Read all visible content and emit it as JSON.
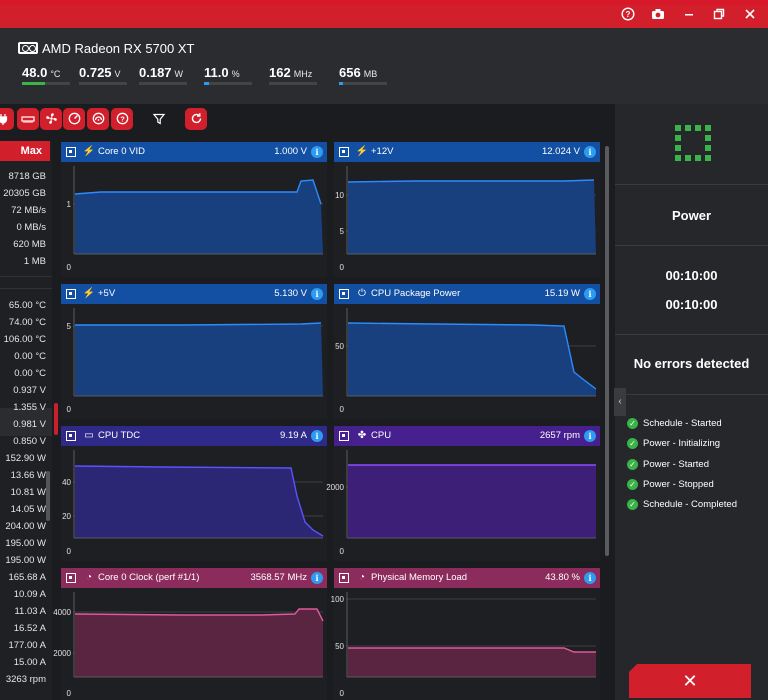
{
  "gpu": {
    "name": "AMD Radeon RX 5700 XT",
    "metrics": [
      {
        "value": "48.0",
        "unit": "°C",
        "level": 0.48,
        "color": "#3ab349"
      },
      {
        "value": "0.725",
        "unit": "V",
        "level": 0,
        "color": "#3ab349"
      },
      {
        "value": "0.187",
        "unit": "W",
        "level": 0,
        "color": "#3ab349"
      },
      {
        "value": "11.0",
        "unit": "%",
        "level": 0.11,
        "color": "#2d9bf0"
      },
      {
        "value": "162",
        "unit": "MHz",
        "level": 0,
        "color": "#2d9bf0"
      },
      {
        "value": "656",
        "unit": "MB",
        "level": 0.08,
        "color": "#2d9bf0"
      }
    ]
  },
  "toolbar": {
    "icons": [
      "plug-icon",
      "ram-icon",
      "fan-icon",
      "gauge-icon",
      "speedometer-icon",
      "help-icon",
      "filter-icon",
      "reset-icon"
    ]
  },
  "left_list": {
    "header": "Max",
    "rows": [
      "8718 GB",
      "20305 GB",
      "72 MB/s",
      "0 MB/s",
      "620 MB",
      "1 MB",
      "65.00 °C",
      "74.00 °C",
      "106.00 °C",
      "0.00 °C",
      "0.00 °C",
      "0.937 V",
      "1.355 V",
      "0.981 V",
      "0.850 V",
      "152.90 W",
      "13.66 W",
      "10.81 W",
      "14.05 W",
      "204.00 W",
      "195.00 W",
      "195.00 W",
      "165.68 A",
      "10.09 A",
      "11.03 A",
      "16.52 A",
      "177.00 A",
      "15.00 A",
      "3263 rpm"
    ]
  },
  "panels": [
    {
      "title": "Core 0 VID",
      "value": "1.000 V",
      "icon": "chip-plug-icon",
      "theme": "blue",
      "ticks": [
        "1",
        "0"
      ]
    },
    {
      "title": "+12V",
      "value": "12.024 V",
      "icon": "chip-plug-icon",
      "theme": "blue",
      "ticks": [
        "10",
        "5",
        "0"
      ]
    },
    {
      "title": "+5V",
      "value": "5.130 V",
      "icon": "chip-plug-icon",
      "theme": "blue",
      "ticks": [
        "5",
        "0"
      ]
    },
    {
      "title": "CPU Package Power",
      "value": "15.19 W",
      "icon": "plug-icon",
      "theme": "blue",
      "ticks": [
        "50",
        "0"
      ]
    },
    {
      "title": "CPU TDC",
      "value": "9.19 A",
      "icon": "ram-icon",
      "theme": "indigo",
      "ticks": [
        "40",
        "20",
        "0"
      ]
    },
    {
      "title": "CPU",
      "value": "2657 rpm",
      "icon": "fan-icon",
      "theme": "violet",
      "ticks": [
        "2000",
        "0"
      ]
    },
    {
      "title": "Core 0 Clock (perf #1/1)",
      "value": "3568.57 MHz",
      "icon": "speedometer-icon",
      "theme": "pink",
      "ticks": [
        "4000",
        "2000",
        "0"
      ]
    },
    {
      "title": "Physical Memory Load",
      "value": "43.80 %",
      "icon": "speedometer-icon",
      "theme": "pink",
      "ticks": [
        "100",
        "50",
        "0"
      ]
    }
  ],
  "right": {
    "title": "Power",
    "timer_elapsed": "00:10:00",
    "timer_total": "00:10:00",
    "status": "No errors detected",
    "log": [
      "Schedule - Started",
      "Power - Initializing",
      "Power - Started",
      "Power - Stopped",
      "Schedule - Completed"
    ]
  }
}
